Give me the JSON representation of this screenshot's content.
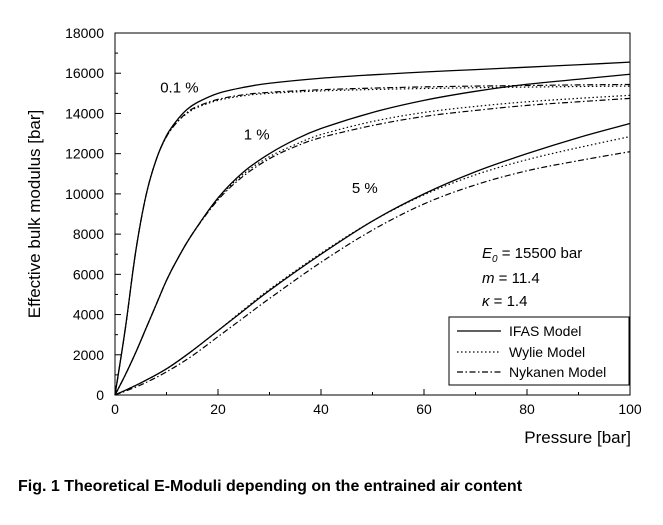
{
  "chart_data": {
    "type": "line",
    "xlabel": "Pressure [bar]",
    "ylabel": "Effective bulk modulus [bar]",
    "xlim": [
      0,
      100
    ],
    "ylim": [
      0,
      18000
    ],
    "x_ticks": [
      0,
      20,
      40,
      60,
      80,
      100
    ],
    "y_ticks": [
      0,
      2000,
      4000,
      6000,
      8000,
      10000,
      12000,
      14000,
      16000,
      18000
    ],
    "grid": false,
    "legend_position": "bottom-right",
    "legend": [
      {
        "label": "IFAS Model",
        "dash": "solid"
      },
      {
        "label": "Wylie Model",
        "dash": "dotted"
      },
      {
        "label": "Nykanen Model",
        "dash": "dashdot"
      }
    ],
    "series": [
      {
        "model": "IFAS Model",
        "air_content": "0.1 %",
        "dash": "solid",
        "x": [
          0,
          2,
          4,
          6,
          8,
          10,
          12,
          14,
          16,
          20,
          25,
          30,
          40,
          50,
          60,
          70,
          80,
          90,
          100
        ],
        "y": [
          0,
          3300,
          7100,
          9900,
          11700,
          12900,
          13650,
          14200,
          14550,
          15000,
          15300,
          15500,
          15750,
          15920,
          16060,
          16180,
          16300,
          16420,
          16550
        ]
      },
      {
        "model": "Wylie Model",
        "air_content": "0.1 %",
        "dash": "dotted",
        "x": [
          0,
          2,
          4,
          6,
          8,
          10,
          12,
          14,
          16,
          20,
          25,
          30,
          40,
          50,
          60,
          70,
          80,
          90,
          100
        ],
        "y": [
          0,
          3300,
          7100,
          9900,
          11700,
          12850,
          13550,
          14000,
          14300,
          14650,
          14880,
          15000,
          15120,
          15190,
          15240,
          15280,
          15310,
          15340,
          15360
        ]
      },
      {
        "model": "Nykanen Model",
        "air_content": "0.1 %",
        "dash": "dashdot",
        "x": [
          0,
          2,
          4,
          6,
          8,
          10,
          12,
          14,
          16,
          20,
          25,
          30,
          40,
          50,
          60,
          70,
          80,
          90,
          100
        ],
        "y": [
          0,
          3300,
          7100,
          9900,
          11700,
          12850,
          13550,
          14050,
          14350,
          14700,
          14930,
          15050,
          15180,
          15260,
          15320,
          15360,
          15390,
          15420,
          15440
        ]
      },
      {
        "model": "IFAS Model",
        "air_content": "1 %",
        "dash": "solid",
        "x": [
          0,
          2,
          4,
          6,
          8,
          10,
          12,
          15,
          20,
          25,
          30,
          35,
          40,
          50,
          60,
          70,
          80,
          90,
          100
        ],
        "y": [
          0,
          1000,
          2100,
          3300,
          4500,
          5700,
          6700,
          8000,
          9800,
          11100,
          12000,
          12700,
          13250,
          14050,
          14650,
          15100,
          15450,
          15700,
          15950
        ]
      },
      {
        "model": "Wylie Model",
        "air_content": "1 %",
        "dash": "dotted",
        "x": [
          0,
          2,
          4,
          6,
          8,
          10,
          12,
          15,
          20,
          25,
          30,
          35,
          40,
          50,
          60,
          70,
          80,
          90,
          100
        ],
        "y": [
          0,
          1000,
          2100,
          3300,
          4500,
          5700,
          6700,
          8000,
          9750,
          11000,
          11850,
          12450,
          12950,
          13600,
          14050,
          14350,
          14580,
          14750,
          14900
        ]
      },
      {
        "model": "Nykanen Model",
        "air_content": "1 %",
        "dash": "dashdot",
        "x": [
          0,
          2,
          4,
          6,
          8,
          10,
          12,
          15,
          20,
          25,
          30,
          35,
          40,
          50,
          60,
          70,
          80,
          90,
          100
        ],
        "y": [
          0,
          1000,
          2100,
          3300,
          4500,
          5700,
          6700,
          8000,
          9700,
          10900,
          11750,
          12350,
          12800,
          13400,
          13850,
          14150,
          14400,
          14580,
          14750
        ]
      },
      {
        "model": "IFAS Model",
        "air_content": "5 %",
        "dash": "solid",
        "x": [
          0,
          5,
          10,
          15,
          20,
          25,
          30,
          40,
          50,
          60,
          70,
          80,
          90,
          100
        ],
        "y": [
          0,
          600,
          1300,
          2200,
          3200,
          4200,
          5200,
          7000,
          8650,
          10000,
          11100,
          12000,
          12800,
          13500
        ]
      },
      {
        "model": "Wylie Model",
        "air_content": "5 %",
        "dash": "dotted",
        "x": [
          0,
          5,
          10,
          15,
          20,
          25,
          30,
          40,
          50,
          60,
          70,
          80,
          90,
          100
        ],
        "y": [
          0,
          600,
          1300,
          2200,
          3200,
          4250,
          5250,
          7050,
          8650,
          9950,
          10950,
          11700,
          12300,
          12850
        ]
      },
      {
        "model": "Nykanen Model",
        "air_content": "5 %",
        "dash": "dashdot",
        "x": [
          0,
          5,
          10,
          15,
          20,
          25,
          30,
          40,
          50,
          60,
          70,
          80,
          90,
          100
        ],
        "y": [
          0,
          500,
          1150,
          1950,
          2900,
          3850,
          4800,
          6600,
          8200,
          9500,
          10450,
          11150,
          11650,
          12100
        ]
      }
    ],
    "annotations": [
      {
        "text": "0.1 %",
        "x": 12.5,
        "y": 15050
      },
      {
        "text": "1 %",
        "x": 27.5,
        "y": 12700
      },
      {
        "text": "5 %",
        "x": 48.5,
        "y": 10050
      }
    ],
    "parameters": {
      "e0_symbol": "E",
      "e0_subscript": "0",
      "e0_value": " = 15500 bar",
      "m_symbol": "m",
      "m_value": " = 11.4",
      "kappa_symbol": "κ",
      "kappa_value": " = 1.4"
    }
  },
  "caption": {
    "text": "Fig. 1  Theoretical E-Moduli depending on the entrained air content"
  }
}
